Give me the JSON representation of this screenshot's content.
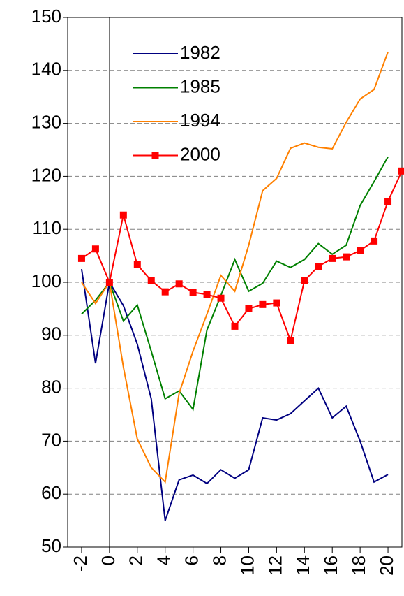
{
  "chart_data": {
    "type": "line",
    "x": [
      -2,
      -1,
      0,
      1,
      2,
      3,
      4,
      5,
      6,
      7,
      8,
      9,
      10,
      11,
      12,
      13,
      14,
      15,
      16,
      17,
      18,
      19,
      20,
      21
    ],
    "series": [
      {
        "name": "1982",
        "color": "#000080",
        "values": [
          102.5,
          84.7,
          100,
          95.6,
          88.3,
          78,
          55,
          62.7,
          63.6,
          62,
          64.6,
          63,
          64.6,
          74.4,
          74,
          75.2,
          77.6,
          80,
          74.4,
          76.6,
          70,
          62.3,
          63.7,
          null
        ]
      },
      {
        "name": "1985",
        "color": "#008000",
        "values": [
          94,
          96.6,
          100,
          92.7,
          95.7,
          87,
          78,
          79.5,
          76,
          91,
          97.5,
          104.3,
          98.3,
          99.8,
          104,
          102.8,
          104.3,
          107.3,
          105.3,
          107,
          114.5,
          119,
          123.7,
          null
        ]
      },
      {
        "name": "1994",
        "color": "#ff8000",
        "values": [
          100,
          96,
          100,
          84,
          70.4,
          65,
          62.3,
          79,
          87,
          94,
          101.3,
          98.3,
          107,
          117.3,
          119.6,
          125.3,
          126.3,
          125.5,
          125.2,
          130.2,
          134.6,
          136.4,
          143.5,
          null
        ]
      },
      {
        "name": "2000",
        "color": "#ff0000",
        "marker": "square",
        "values": [
          104.5,
          106.3,
          100,
          112.7,
          103.3,
          100.3,
          98.2,
          99.7,
          98.1,
          97.7,
          97,
          91.7,
          95,
          95.8,
          96.1,
          89,
          100.3,
          103,
          104.5,
          104.8,
          106,
          107.8,
          115.3,
          121
        ]
      }
    ],
    "xlim": [
      -3,
      21
    ],
    "xticks": [
      -2,
      0,
      2,
      4,
      6,
      8,
      10,
      12,
      14,
      16,
      18,
      20
    ],
    "ylim": [
      50,
      150
    ],
    "yticks": [
      50,
      60,
      70,
      80,
      90,
      100,
      110,
      120,
      130,
      140,
      150
    ],
    "grid": true,
    "legend": "upper-left"
  }
}
